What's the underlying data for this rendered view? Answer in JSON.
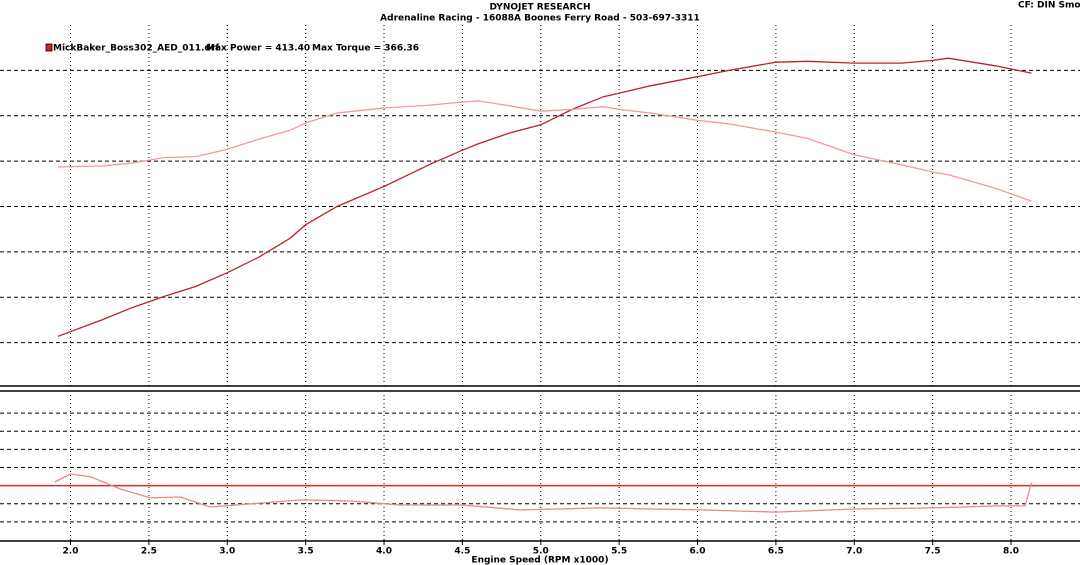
{
  "chart_data": [
    {
      "type": "line",
      "title": "DYNOJET RESEARCH",
      "subtitle": "Adrenaline Racing - 16088A Boones Ferry Road - 503-697-3311",
      "corner_text": "CF: DIN  Smoo",
      "legend": "MickBaker_Boss302_AED_011.drf",
      "annotations": [
        "Max Power = 413.40",
        "Max Torque = 366.36"
      ],
      "x": [
        1.92,
        2.2,
        2.4,
        2.6,
        2.8,
        3.0,
        3.2,
        3.4,
        3.5,
        3.7,
        4.0,
        4.3,
        4.5,
        4.6,
        4.8,
        5.0,
        5.2,
        5.4,
        5.5,
        5.7,
        6.0,
        6.2,
        6.5,
        6.7,
        7.0,
        7.3,
        7.5,
        7.6,
        7.9,
        8.13
      ],
      "series": [
        {
          "color": "#b8242a",
          "values": [
            107,
            125,
            139,
            151,
            162,
            177,
            194,
            215,
            230,
            250,
            272,
            297,
            312,
            319,
            331,
            340,
            357,
            371,
            375,
            383,
            393,
            400,
            409,
            410,
            408,
            408,
            411,
            413.4,
            405,
            397
          ]
        },
        {
          "color": "#f09a9a",
          "values": [
            293.5,
            294.6,
            298,
            304,
            305,
            313,
            324,
            334,
            342,
            353,
            358.5,
            361.8,
            365,
            366.36,
            361,
            355,
            357,
            360,
            357,
            353,
            345,
            341,
            332,
            325,
            307,
            296,
            288,
            285,
            270,
            256
          ]
        }
      ],
      "xlim": [
        1.55,
        8.44
      ],
      "xticks": [
        2,
        2.5,
        3,
        3.5,
        4,
        4.5,
        5,
        5.5,
        6,
        6.5,
        7,
        7.5,
        8
      ],
      "ylim": [
        50,
        450
      ],
      "yticks": [
        100,
        150,
        200,
        250,
        300,
        350,
        400
      ],
      "grid": true
    },
    {
      "type": "line",
      "xlabel": "Engine Speed (RPM x1000)",
      "x": [
        1.9,
        2.0,
        2.13,
        2.32,
        2.51,
        2.7,
        2.89,
        3.15,
        3.47,
        3.79,
        4.1,
        4.5,
        4.87,
        5.38,
        6.02,
        6.5,
        7.0,
        7.5,
        7.93,
        8.09,
        8.13
      ],
      "series": [
        {
          "color": "#e48a8a",
          "values": [
            13.2,
            13.64,
            13.48,
            12.81,
            12.32,
            12.37,
            11.82,
            11.99,
            12.21,
            12.15,
            11.93,
            11.93,
            11.66,
            11.77,
            11.66,
            11.54,
            11.71,
            11.77,
            11.88,
            11.88,
            13.14
          ]
        }
      ],
      "reference_line": 13,
      "reference_color": "#d03030",
      "xlim": [
        1.55,
        8.44
      ],
      "xticks": [
        {
          "value": 2,
          "label": "2.0"
        },
        {
          "value": 2.5,
          "label": "2.5"
        },
        {
          "value": 3,
          "label": "3.0"
        },
        {
          "value": 3.5,
          "label": "3.5"
        },
        {
          "value": 4,
          "label": "4.0"
        },
        {
          "value": 4.5,
          "label": "4.5"
        },
        {
          "value": 5,
          "label": "5.0"
        },
        {
          "value": 5.5,
          "label": "5.5"
        },
        {
          "value": 6,
          "label": "6.0"
        },
        {
          "value": 6.5,
          "label": "6.5"
        },
        {
          "value": 7,
          "label": "7.0"
        },
        {
          "value": 7.5,
          "label": "7.5"
        },
        {
          "value": 8,
          "label": "8.0"
        }
      ],
      "ylim": [
        10,
        18
      ],
      "yticks": [
        11,
        12,
        13,
        14,
        15,
        16,
        17
      ],
      "grid": true
    }
  ]
}
